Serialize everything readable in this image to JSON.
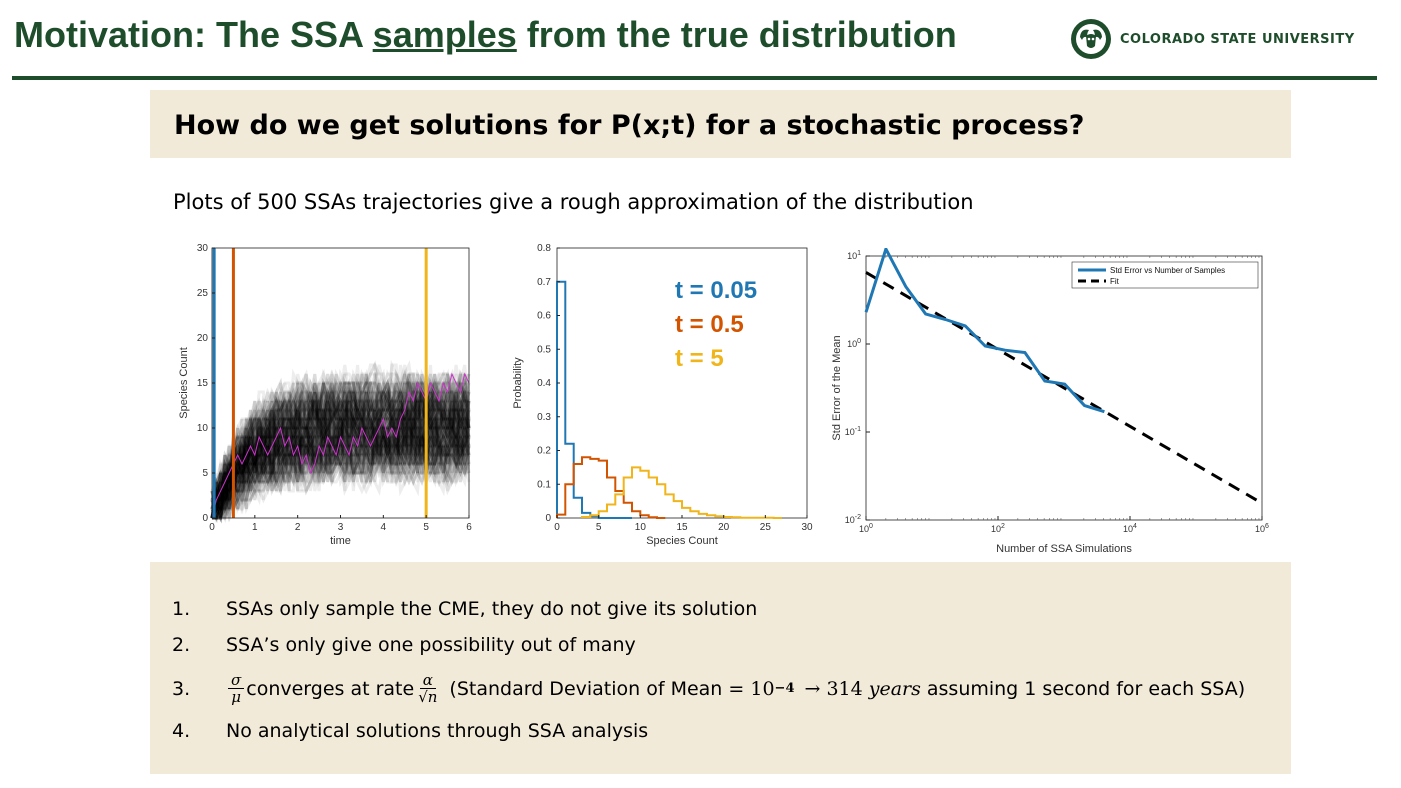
{
  "header": {
    "title_pre": "Motivation: The SSA ",
    "title_underlined": "samples",
    "title_post": " from the true distribution",
    "logo_text": "COLORADO STATE UNIVERSITY",
    "accent_color": "#1e4d2b"
  },
  "question": "How do we get solutions for P(x;t) for a stochastic process?",
  "subtitle": "Plots of 500 SSAs trajectories give a rough approximation of the distribution",
  "chart_data": [
    {
      "type": "line",
      "title": "",
      "xlabel": "time",
      "ylabel": "Species Count",
      "xlim": [
        0,
        6
      ],
      "ylim": [
        0,
        30
      ],
      "x_ticks": [
        "0",
        "1",
        "2",
        "3",
        "4",
        "5",
        "6"
      ],
      "y_ticks": [
        "0",
        "5",
        "10",
        "15",
        "20",
        "25",
        "30"
      ],
      "vertical_lines": [
        {
          "x": 0.05,
          "color": "#1f77b4"
        },
        {
          "x": 0.5,
          "color": "#d35400"
        },
        {
          "x": 5,
          "color": "#f1b51c"
        }
      ],
      "highlight_color": "#cc33cc",
      "highlight_trajectory": {
        "x": [
          0,
          0.1,
          0.2,
          0.3,
          0.4,
          0.5,
          0.6,
          0.7,
          0.8,
          0.9,
          1.0,
          1.1,
          1.2,
          1.3,
          1.4,
          1.5,
          1.6,
          1.7,
          1.8,
          1.9,
          2.0,
          2.1,
          2.2,
          2.3,
          2.4,
          2.5,
          2.6,
          2.7,
          2.8,
          2.9,
          3.0,
          3.1,
          3.2,
          3.3,
          3.4,
          3.5,
          3.6,
          3.7,
          3.8,
          3.9,
          4.0,
          4.1,
          4.2,
          4.3,
          4.4,
          4.5,
          4.6,
          4.7,
          4.8,
          4.9,
          5.0,
          5.1,
          5.2,
          5.3,
          5.4,
          5.5,
          5.6,
          5.7,
          5.8,
          5.9,
          6.0
        ],
        "y": [
          0,
          2,
          3,
          4,
          5,
          6,
          7,
          6,
          7,
          8,
          7,
          9,
          8,
          7,
          8,
          9,
          10,
          8,
          9,
          7,
          8,
          6,
          7,
          5,
          6,
          8,
          7,
          9,
          8,
          7,
          9,
          8,
          7,
          9,
          8,
          10,
          9,
          8,
          9,
          10,
          11,
          9,
          10,
          9,
          11,
          12,
          14,
          13,
          15,
          14,
          13,
          15,
          14,
          13,
          15,
          14,
          16,
          15,
          14,
          16,
          15
        ]
      }
    },
    {
      "type": "line",
      "title": "",
      "xlabel": "Species Count",
      "ylabel": "Probability",
      "xlim": [
        0,
        30
      ],
      "ylim": [
        0,
        0.8
      ],
      "x_ticks": [
        "0",
        "5",
        "10",
        "15",
        "20",
        "25",
        "30"
      ],
      "y_ticks": [
        "0",
        "0.1",
        "0.2",
        "0.3",
        "0.4",
        "0.5",
        "0.6",
        "0.7",
        "0.8"
      ],
      "series": [
        {
          "name": "t = 0.05",
          "color": "#1f77b4",
          "x": [
            0,
            1,
            2,
            3,
            4,
            5,
            6,
            7,
            8
          ],
          "values": [
            0.7,
            0.22,
            0.06,
            0.015,
            0.005,
            0,
            0,
            0,
            0
          ]
        },
        {
          "name": "t = 0.5",
          "color": "#d35400",
          "x": [
            0,
            1,
            2,
            3,
            4,
            5,
            6,
            7,
            8,
            9,
            10,
            11,
            12
          ],
          "values": [
            0.01,
            0.1,
            0.16,
            0.18,
            0.175,
            0.17,
            0.12,
            0.08,
            0.045,
            0.02,
            0.008,
            0.002,
            0
          ]
        },
        {
          "name": "t = 5",
          "color": "#f1b51c",
          "x": [
            3,
            4,
            5,
            6,
            7,
            8,
            9,
            10,
            11,
            12,
            13,
            14,
            15,
            16,
            17,
            18,
            19,
            20,
            21,
            22,
            23,
            24,
            25,
            26
          ],
          "values": [
            0.003,
            0.008,
            0.02,
            0.04,
            0.07,
            0.12,
            0.15,
            0.14,
            0.12,
            0.1,
            0.07,
            0.05,
            0.03,
            0.02,
            0.012,
            0.008,
            0.005,
            0.003,
            0.002,
            0.001,
            0.001,
            0.001,
            0.0005,
            0
          ]
        }
      ]
    },
    {
      "type": "line",
      "title": "",
      "xlabel": "Number of SSA Simulations",
      "ylabel": "Std Error of the Mean",
      "x_scale": "log",
      "y_scale": "log",
      "xlim": [
        1,
        1000000
      ],
      "ylim": [
        0.01,
        10
      ],
      "x_ticks": [
        "10^0",
        "10^2",
        "10^4",
        "10^6"
      ],
      "y_ticks": [
        "10^1",
        "10^0",
        "10^-1",
        "10^-2"
      ],
      "legend_position": "top-right",
      "series": [
        {
          "name": "Std Error vs Number of Samples",
          "color": "#1f77b4",
          "x": [
            1,
            2,
            4,
            8,
            16,
            32,
            64,
            128,
            256,
            512,
            1024,
            2048,
            4096
          ],
          "values": [
            2.3,
            12,
            4.5,
            2.2,
            1.9,
            1.6,
            0.95,
            0.85,
            0.8,
            0.38,
            0.35,
            0.2,
            0.17
          ]
        },
        {
          "name": "Fit",
          "color": "#000000",
          "style": "dashed",
          "x": [
            1,
            1000000
          ],
          "values": [
            6.5,
            0.0155
          ]
        }
      ]
    }
  ],
  "chart_labels": {
    "legend_t005": "t = 0.05",
    "legend_t05": "t = 0.5",
    "legend_t5": "t = 5"
  },
  "list": {
    "n1": "1.",
    "i1": "SSAs only sample the CME, they do not give its solution",
    "n2": "2.",
    "i2": "SSA’s only give one possibility out of many",
    "n3": "3.",
    "sigma": "σ",
    "mu": "μ",
    "converges": "converges at rate",
    "alpha": "α",
    "sqrtn": "√n",
    "paren_pre": "(Standard Deviation of Mean = ",
    "ten": "10",
    "exp": "−4",
    "arrow": "→ 314",
    "years": "years",
    "paren_post": "assuming 1 second for each SSA)",
    "n4": "4.",
    "i4": "No analytical solutions through SSA analysis"
  }
}
